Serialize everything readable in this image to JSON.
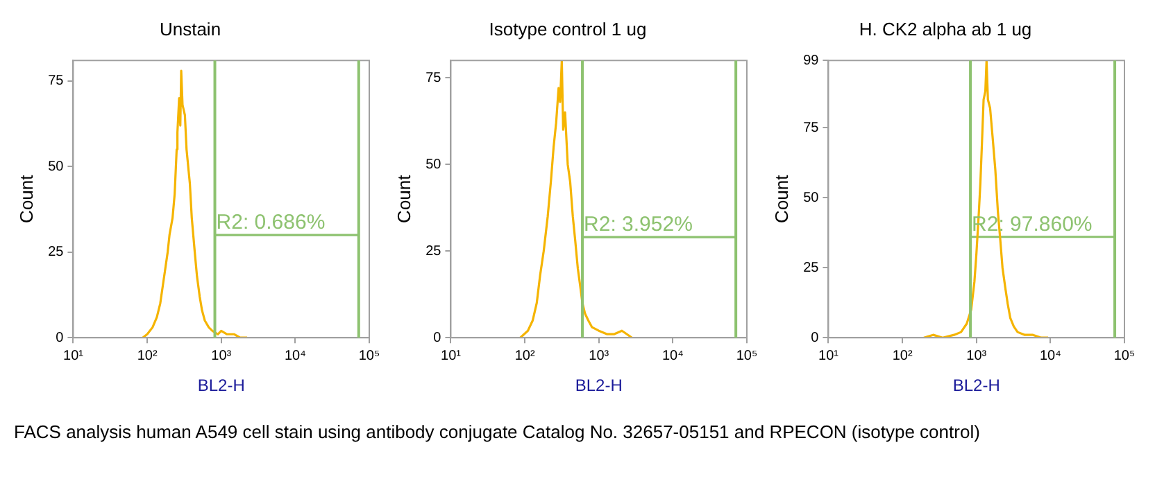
{
  "chart_data": [
    {
      "type": "line",
      "title": "Unstain",
      "xlabel": "BL2-H",
      "ylabel": "Count",
      "log": "x",
      "xlim": [
        10,
        100000
      ],
      "ylim": [
        0,
        81
      ],
      "xticks": [
        {
          "value": 10,
          "label": "10¹"
        },
        {
          "value": 100,
          "label": "10²"
        },
        {
          "value": 1000,
          "label": "10³"
        },
        {
          "value": 10000,
          "label": "10⁴"
        },
        {
          "value": 100000,
          "label": "10⁵"
        }
      ],
      "yticks": [
        0,
        25,
        50,
        75
      ],
      "grid": false,
      "legend": false,
      "marker": "none",
      "series": [
        {
          "color": "#f5b400",
          "x": [
            87,
            100,
            118,
            135,
            150,
            162,
            175,
            189,
            200,
            220,
            235,
            250,
            256,
            270,
            280,
            288,
            300,
            323,
            340,
            377,
            400,
            439,
            470,
            512,
            550,
            600,
            680,
            760,
            900,
            1000,
            1200,
            1500,
            1800,
            2240
          ],
          "values": [
            0,
            1,
            3,
            6,
            10,
            15,
            20,
            25,
            30,
            35,
            42,
            55,
            60,
            70,
            62,
            78,
            68,
            65,
            55,
            45,
            35,
            25,
            18,
            12,
            8,
            5,
            3,
            2,
            1,
            2,
            1,
            1,
            0,
            0
          ]
        },
        {
          "color": "#8dc26f",
          "x": [
            820,
            72000
          ],
          "values": [
            30,
            30
          ]
        }
      ],
      "ref_lines": [
        {
          "axis": "x",
          "value": 820,
          "color": "#8dc26f"
        },
        {
          "axis": "x",
          "value": 72000,
          "color": "#8dc26f"
        }
      ],
      "annotations": [
        {
          "text": "R2: 0.686%",
          "x": 820,
          "y": 30
        },
        "FACS analysis human A549 cell stain using antibody conjugate Catalog No. 32657-05151 and RPECON (isotype control)"
      ]
    },
    {
      "type": "line",
      "title": "Isotype control 1 ug",
      "xlabel": "BL2-H",
      "ylabel": "Count",
      "log": "x",
      "xlim": [
        10,
        100000
      ],
      "ylim": [
        0,
        80
      ],
      "xticks": [
        {
          "value": 10,
          "label": "10¹"
        },
        {
          "value": 100,
          "label": "10²"
        },
        {
          "value": 1000,
          "label": "10³"
        },
        {
          "value": 10000,
          "label": "10⁴"
        },
        {
          "value": 100000,
          "label": "10⁵"
        }
      ],
      "yticks": [
        0,
        25,
        50,
        75
      ],
      "grid": false,
      "legend": false,
      "marker": "none",
      "series": [
        {
          "color": "#f5b400",
          "x": [
            87,
            110,
            128,
            145,
            161,
            180,
            204,
            225,
            245,
            265,
            286,
            300,
            316,
            330,
            350,
            380,
            410,
            445,
            480,
            520,
            560,
            600,
            650,
            720,
            810,
            1000,
            1300,
            1600,
            2050,
            2400,
            2800
          ],
          "values": [
            0,
            2,
            5,
            10,
            18,
            25,
            35,
            45,
            55,
            62,
            72,
            68,
            80,
            60,
            65,
            50,
            45,
            35,
            28,
            20,
            15,
            10,
            7,
            5,
            3,
            2,
            1,
            1,
            2,
            1,
            0
          ]
        },
        {
          "color": "#8dc26f",
          "x": [
            600,
            71000
          ],
          "values": [
            29,
            29
          ]
        }
      ],
      "ref_lines": [
        {
          "axis": "x",
          "value": 600,
          "color": "#8dc26f"
        },
        {
          "axis": "x",
          "value": 71000,
          "color": "#8dc26f"
        }
      ],
      "annotations": [
        {
          "text": "R2: 3.952%",
          "x": 600,
          "y": 29
        }
      ]
    },
    {
      "type": "line",
      "title": "H. CK2 alpha ab 1 ug",
      "xlabel": "BL2-H",
      "ylabel": "Count",
      "log": "x",
      "xlim": [
        10,
        100000
      ],
      "ylim": [
        0,
        99
      ],
      "xticks": [
        {
          "value": 10,
          "label": "10¹"
        },
        {
          "value": 100,
          "label": "10²"
        },
        {
          "value": 1000,
          "label": "10³"
        },
        {
          "value": 10000,
          "label": "10⁴"
        },
        {
          "value": 100000,
          "label": "10⁵"
        }
      ],
      "yticks": [
        0,
        25,
        50,
        75,
        99
      ],
      "grid": false,
      "legend": false,
      "marker": "none",
      "series": [
        {
          "color": "#f5b400",
          "x": [
            195,
            260,
            350,
            500,
            620,
            740,
            850,
            940,
            1000,
            1080,
            1130,
            1190,
            1250,
            1320,
            1370,
            1430,
            1530,
            1650,
            1800,
            1950,
            2100,
            2250,
            2450,
            2650,
            2870,
            3200,
            3600,
            4500,
            5800,
            7500,
            9300
          ],
          "values": [
            0,
            1,
            0,
            1,
            2,
            5,
            10,
            20,
            30,
            45,
            55,
            70,
            85,
            88,
            99,
            85,
            82,
            72,
            60,
            45,
            35,
            25,
            18,
            12,
            7,
            4,
            2,
            1,
            1,
            0,
            0
          ]
        },
        {
          "color": "#8dc26f",
          "x": [
            830,
            74000
          ],
          "values": [
            36,
            36
          ]
        }
      ],
      "ref_lines": [
        {
          "axis": "x",
          "value": 830,
          "color": "#8dc26f"
        },
        {
          "axis": "x",
          "value": 74000,
          "color": "#8dc26f"
        }
      ],
      "annotations": [
        {
          "text": "R2: 97.860%",
          "x": 830,
          "y": 36
        }
      ]
    }
  ]
}
